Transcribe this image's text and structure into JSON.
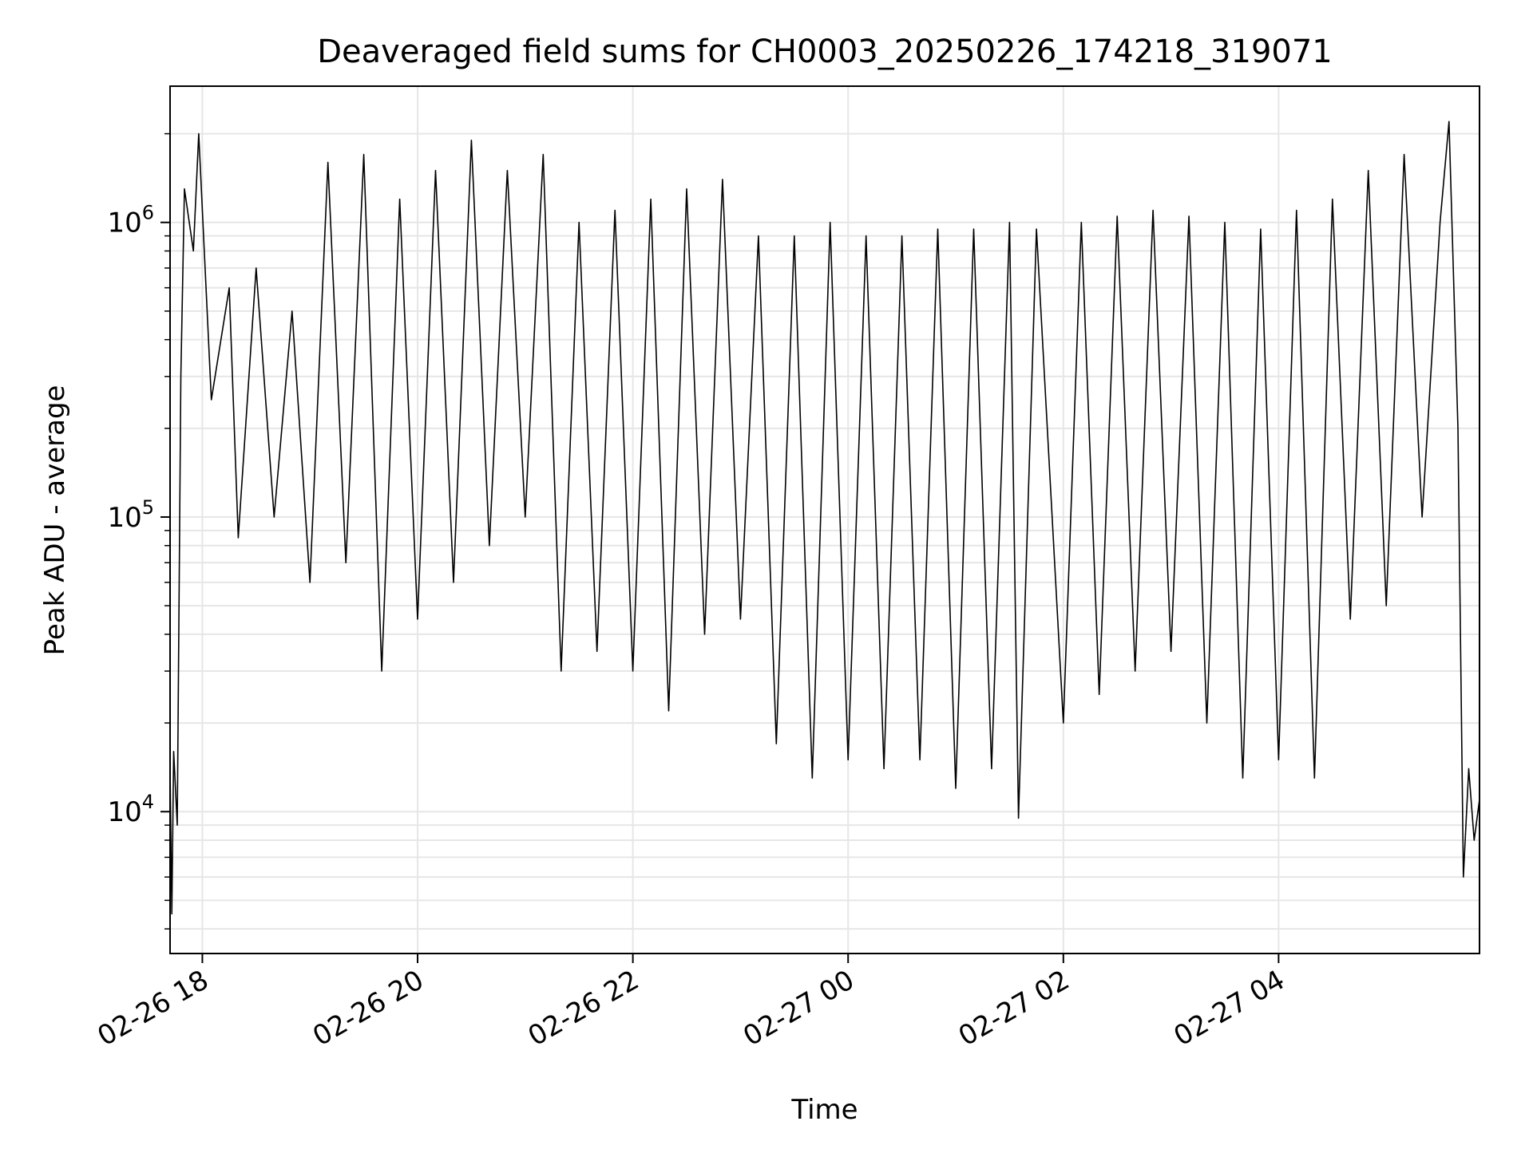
{
  "chart_data": {
    "type": "line",
    "title": "Deaveraged field sums for CH0003_20250226_174218_319071",
    "xlabel": "Time",
    "ylabel": "Peak ADU - average",
    "yscale": "log",
    "grid": true,
    "line_color": "#000000",
    "grid_color": "#e6e6e6",
    "x_range": [
      "2025-02-26T17:42",
      "2025-02-27T05:52"
    ],
    "ylim": [
      3300,
      2900000
    ],
    "x_ticks": [
      {
        "t": "2025-02-26T18:00",
        "label": "02-26 18"
      },
      {
        "t": "2025-02-26T20:00",
        "label": "02-26 20"
      },
      {
        "t": "2025-02-26T22:00",
        "label": "02-26 22"
      },
      {
        "t": "2025-02-27T00:00",
        "label": "02-27 00"
      },
      {
        "t": "2025-02-27T02:00",
        "label": "02-27 02"
      },
      {
        "t": "2025-02-27T04:00",
        "label": "02-27 04"
      }
    ],
    "y_ticks": [
      {
        "value": 10000,
        "base": "10",
        "exp": "4"
      },
      {
        "value": 100000,
        "base": "10",
        "exp": "5"
      },
      {
        "value": 1000000,
        "base": "10",
        "exp": "6"
      }
    ],
    "series": [
      {
        "points": [
          [
            "2025-02-26T17:42",
            14000
          ],
          [
            "2025-02-26T17:43",
            4500
          ],
          [
            "2025-02-26T17:44",
            16000
          ],
          [
            "2025-02-26T17:46",
            9000
          ],
          [
            "2025-02-26T17:48",
            300000
          ],
          [
            "2025-02-26T17:50",
            1300000
          ],
          [
            "2025-02-26T17:55",
            800000
          ],
          [
            "2025-02-26T17:58",
            2000000
          ],
          [
            "2025-02-26T18:05",
            250000
          ],
          [
            "2025-02-26T18:15",
            600000
          ],
          [
            "2025-02-26T18:20",
            85000
          ],
          [
            "2025-02-26T18:30",
            700000
          ],
          [
            "2025-02-26T18:40",
            100000
          ],
          [
            "2025-02-26T18:50",
            500000
          ],
          [
            "2025-02-26T19:00",
            60000
          ],
          [
            "2025-02-26T19:10",
            1600000
          ],
          [
            "2025-02-26T19:20",
            70000
          ],
          [
            "2025-02-26T19:30",
            1700000
          ],
          [
            "2025-02-26T19:40",
            30000
          ],
          [
            "2025-02-26T19:50",
            1200000
          ],
          [
            "2025-02-26T20:00",
            45000
          ],
          [
            "2025-02-26T20:10",
            1500000
          ],
          [
            "2025-02-26T20:20",
            60000
          ],
          [
            "2025-02-26T20:30",
            1900000
          ],
          [
            "2025-02-26T20:40",
            80000
          ],
          [
            "2025-02-26T20:50",
            1500000
          ],
          [
            "2025-02-26T21:00",
            100000
          ],
          [
            "2025-02-26T21:10",
            1700000
          ],
          [
            "2025-02-26T21:20",
            30000
          ],
          [
            "2025-02-26T21:30",
            1000000
          ],
          [
            "2025-02-26T21:40",
            35000
          ],
          [
            "2025-02-26T21:50",
            1100000
          ],
          [
            "2025-02-26T22:00",
            30000
          ],
          [
            "2025-02-26T22:10",
            1200000
          ],
          [
            "2025-02-26T22:20",
            22000
          ],
          [
            "2025-02-26T22:30",
            1300000
          ],
          [
            "2025-02-26T22:40",
            40000
          ],
          [
            "2025-02-26T22:50",
            1400000
          ],
          [
            "2025-02-26T23:00",
            45000
          ],
          [
            "2025-02-26T23:10",
            900000
          ],
          [
            "2025-02-26T23:20",
            17000
          ],
          [
            "2025-02-26T23:30",
            900000
          ],
          [
            "2025-02-26T23:40",
            13000
          ],
          [
            "2025-02-26T23:50",
            1000000
          ],
          [
            "2025-02-27T00:00",
            15000
          ],
          [
            "2025-02-27T00:10",
            900000
          ],
          [
            "2025-02-27T00:20",
            14000
          ],
          [
            "2025-02-27T00:30",
            900000
          ],
          [
            "2025-02-27T00:40",
            15000
          ],
          [
            "2025-02-27T00:50",
            950000
          ],
          [
            "2025-02-27T01:00",
            12000
          ],
          [
            "2025-02-27T01:10",
            950000
          ],
          [
            "2025-02-27T01:20",
            14000
          ],
          [
            "2025-02-27T01:30",
            1000000
          ],
          [
            "2025-02-27T01:35",
            9500
          ],
          [
            "2025-02-27T01:45",
            950000
          ],
          [
            "2025-02-27T02:00",
            20000
          ],
          [
            "2025-02-27T02:10",
            1000000
          ],
          [
            "2025-02-27T02:20",
            25000
          ],
          [
            "2025-02-27T02:30",
            1050000
          ],
          [
            "2025-02-27T02:40",
            30000
          ],
          [
            "2025-02-27T02:50",
            1100000
          ],
          [
            "2025-02-27T03:00",
            35000
          ],
          [
            "2025-02-27T03:10",
            1050000
          ],
          [
            "2025-02-27T03:20",
            20000
          ],
          [
            "2025-02-27T03:30",
            1000000
          ],
          [
            "2025-02-27T03:40",
            13000
          ],
          [
            "2025-02-27T03:50",
            950000
          ],
          [
            "2025-02-27T04:00",
            15000
          ],
          [
            "2025-02-27T04:10",
            1100000
          ],
          [
            "2025-02-27T04:20",
            13000
          ],
          [
            "2025-02-27T04:30",
            1200000
          ],
          [
            "2025-02-27T04:40",
            45000
          ],
          [
            "2025-02-27T04:50",
            1500000
          ],
          [
            "2025-02-27T05:00",
            50000
          ],
          [
            "2025-02-27T05:10",
            1700000
          ],
          [
            "2025-02-27T05:20",
            100000
          ],
          [
            "2025-02-27T05:30",
            1000000
          ],
          [
            "2025-02-27T05:35",
            2200000
          ],
          [
            "2025-02-27T05:40",
            200000
          ],
          [
            "2025-02-27T05:43",
            6000
          ],
          [
            "2025-02-27T05:46",
            14000
          ],
          [
            "2025-02-27T05:49",
            8000
          ],
          [
            "2025-02-27T05:52",
            11000
          ]
        ]
      }
    ]
  }
}
